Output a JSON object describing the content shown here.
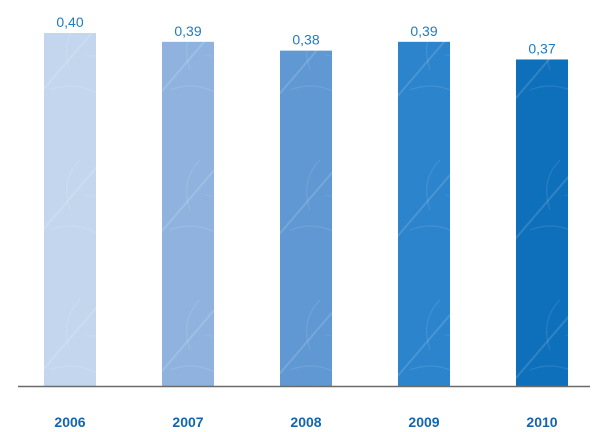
{
  "chart_data": {
    "type": "bar",
    "categories": [
      "2006",
      "2007",
      "2008",
      "2009",
      "2010"
    ],
    "values": [
      0.4,
      0.39,
      0.38,
      0.39,
      0.37
    ],
    "data_labels": [
      "0,40",
      "0,39",
      "0,38",
      "0,39",
      "0,37"
    ],
    "bar_colors": [
      "#c4d6ee",
      "#8fb3de",
      "#5f98d2",
      "#2b84cc",
      "#0e6fbb"
    ],
    "ylim": [
      0,
      0.4
    ],
    "grid": false,
    "title": "",
    "xlabel": "",
    "ylabel": "",
    "label_color": "#1f7cc1",
    "axis_color": "#6b6b6b"
  }
}
